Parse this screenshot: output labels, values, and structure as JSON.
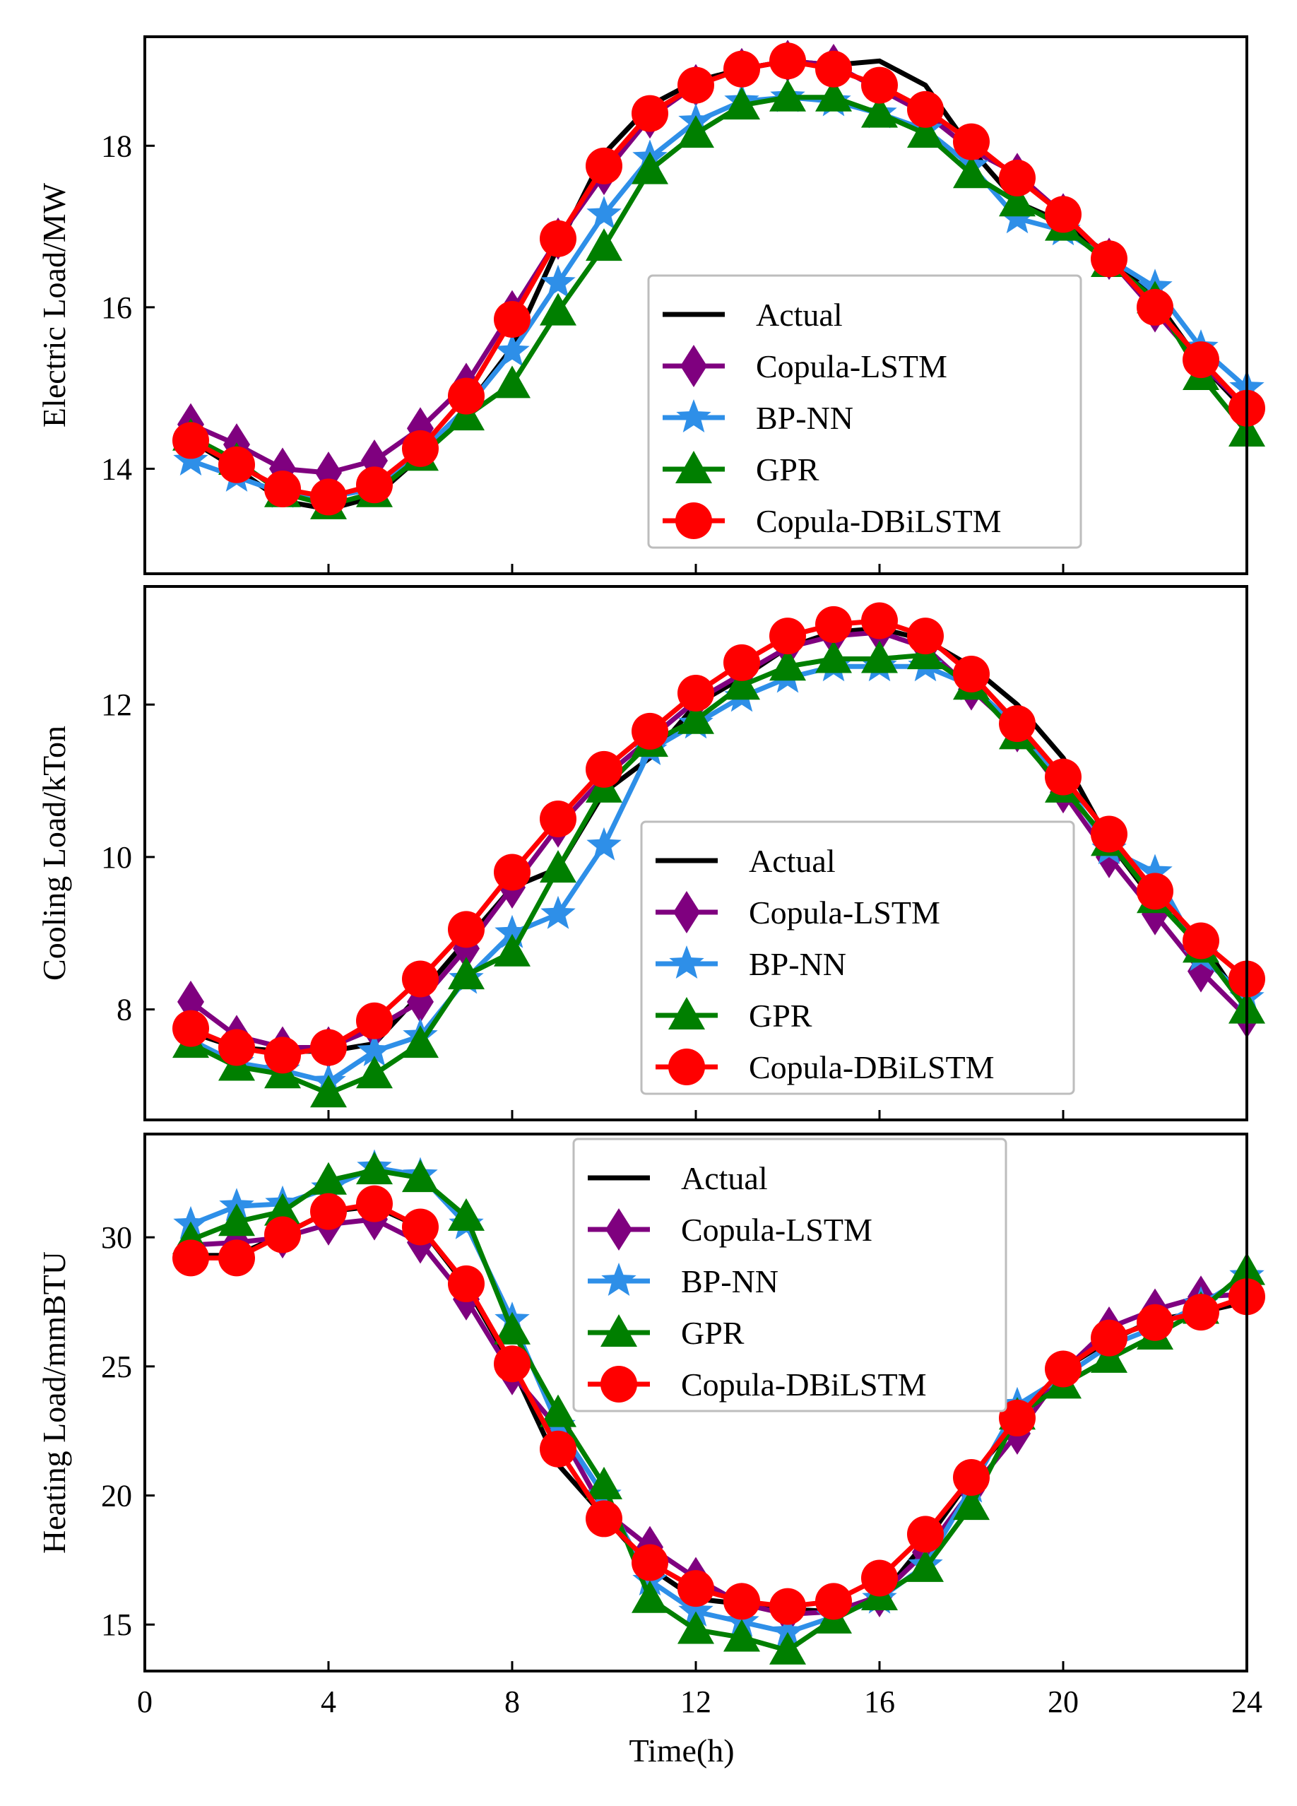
{
  "chart_data": [
    {
      "type": "line",
      "ylabel": "Electric Load/MW",
      "xlabel": "",
      "ylim": [
        12.7,
        19.35
      ],
      "xlim": [
        0,
        24
      ],
      "yticks": [
        14,
        16,
        18
      ],
      "ytick_labels": [
        "14",
        "16",
        "18"
      ],
      "xticks": [
        0,
        4,
        8,
        12,
        16,
        20,
        24
      ],
      "xtick_labels": [],
      "legend": "center-right",
      "x": [
        1,
        2,
        3,
        4,
        5,
        6,
        7,
        8,
        9,
        10,
        11,
        12,
        13,
        14,
        15,
        16,
        17,
        18,
        19,
        20,
        21,
        22,
        23,
        24
      ],
      "series": [
        {
          "name": "Actual",
          "color": "#000000",
          "marker": "none",
          "values": [
            14.35,
            14.0,
            13.6,
            13.5,
            13.65,
            14.15,
            14.75,
            15.5,
            16.75,
            17.9,
            18.5,
            18.8,
            18.95,
            19.05,
            19.0,
            19.05,
            18.75,
            17.95,
            17.3,
            17.05,
            16.65,
            16.1,
            15.3,
            14.7
          ]
        },
        {
          "name": "Copula-LSTM",
          "color": "#7f007f",
          "marker": "diamond",
          "values": [
            14.55,
            14.3,
            14.0,
            13.95,
            14.1,
            14.5,
            15.05,
            15.95,
            16.85,
            17.65,
            18.35,
            18.75,
            18.95,
            19.05,
            19.0,
            18.7,
            18.4,
            17.95,
            17.65,
            17.15,
            16.6,
            15.95,
            15.3,
            14.75
          ]
        },
        {
          "name": "BP-NN",
          "color": "#2e8fe8",
          "marker": "star",
          "values": [
            14.1,
            13.9,
            13.7,
            13.65,
            13.75,
            14.2,
            14.75,
            15.45,
            16.3,
            17.15,
            17.85,
            18.3,
            18.55,
            18.6,
            18.55,
            18.4,
            18.2,
            17.75,
            17.1,
            16.95,
            16.6,
            16.25,
            15.5,
            15.0
          ]
        },
        {
          "name": "GPR",
          "color": "#007f00",
          "marker": "triangle",
          "values": [
            14.4,
            14.1,
            13.7,
            13.55,
            13.7,
            14.15,
            14.65,
            15.05,
            15.95,
            16.75,
            17.7,
            18.15,
            18.5,
            18.6,
            18.6,
            18.4,
            18.15,
            17.65,
            17.3,
            17.0,
            16.55,
            16.1,
            15.15,
            14.45
          ]
        },
        {
          "name": "Copula-DBiLSTM",
          "color": "#ff0000",
          "marker": "circle",
          "values": [
            14.35,
            14.05,
            13.75,
            13.65,
            13.8,
            14.25,
            14.9,
            15.85,
            16.85,
            17.75,
            18.4,
            18.75,
            18.95,
            19.05,
            18.95,
            18.75,
            18.45,
            18.05,
            17.6,
            17.15,
            16.6,
            16.0,
            15.35,
            14.75
          ]
        }
      ]
    },
    {
      "type": "line",
      "ylabel": "Cooling Load/kTon",
      "xlabel": "",
      "ylim": [
        6.55,
        13.55
      ],
      "xlim": [
        0,
        24
      ],
      "yticks": [
        8,
        10,
        12
      ],
      "ytick_labels": [
        "8",
        "10",
        "12"
      ],
      "xticks": [
        0,
        4,
        8,
        12,
        16,
        20,
        24
      ],
      "xtick_labels": [],
      "legend": "center-right",
      "x": [
        1,
        2,
        3,
        4,
        5,
        6,
        7,
        8,
        9,
        10,
        11,
        12,
        13,
        14,
        15,
        16,
        17,
        18,
        19,
        20,
        21,
        22,
        23,
        24
      ],
      "series": [
        {
          "name": "Actual",
          "color": "#000000",
          "marker": "none",
          "values": [
            7.7,
            7.5,
            7.45,
            7.45,
            7.55,
            8.2,
            8.9,
            9.6,
            9.85,
            10.85,
            11.3,
            12.0,
            12.35,
            12.75,
            12.95,
            13.0,
            12.85,
            12.5,
            12.0,
            11.3,
            10.2,
            9.4,
            8.9,
            8.0
          ]
        },
        {
          "name": "Copula-LSTM",
          "color": "#7f007f",
          "marker": "diamond",
          "values": [
            8.1,
            7.65,
            7.5,
            7.5,
            7.75,
            8.1,
            8.8,
            9.6,
            10.4,
            11.05,
            11.55,
            12.05,
            12.4,
            12.75,
            12.9,
            12.95,
            12.75,
            12.2,
            11.65,
            10.85,
            10.0,
            9.25,
            8.5,
            7.9
          ]
        },
        {
          "name": "BP-NN",
          "color": "#2e8fe8",
          "marker": "star",
          "values": [
            7.6,
            7.3,
            7.2,
            7.05,
            7.45,
            7.65,
            8.4,
            9.0,
            9.25,
            10.15,
            11.4,
            11.75,
            12.1,
            12.35,
            12.5,
            12.5,
            12.5,
            12.25,
            11.7,
            11.0,
            10.1,
            9.8,
            8.7,
            8.15
          ]
        },
        {
          "name": "GPR",
          "color": "#007f00",
          "marker": "triangle",
          "values": [
            7.55,
            7.25,
            7.15,
            6.9,
            7.15,
            7.55,
            8.45,
            8.75,
            9.85,
            10.9,
            11.5,
            11.8,
            12.25,
            12.5,
            12.6,
            12.6,
            12.65,
            12.25,
            11.6,
            10.9,
            10.2,
            9.45,
            8.8,
            8.0
          ]
        },
        {
          "name": "Copula-DBiLSTM",
          "color": "#ff0000",
          "marker": "circle",
          "values": [
            7.75,
            7.5,
            7.4,
            7.5,
            7.85,
            8.4,
            9.05,
            9.8,
            10.5,
            11.15,
            11.65,
            12.15,
            12.55,
            12.9,
            13.05,
            13.1,
            12.9,
            12.4,
            11.75,
            11.05,
            10.3,
            9.55,
            8.9,
            8.4
          ]
        }
      ]
    },
    {
      "type": "line",
      "ylabel": "Heating Load/mmBTU",
      "xlabel": "Time(h)",
      "ylim": [
        13.2,
        34.0
      ],
      "xlim": [
        0,
        24
      ],
      "yticks": [
        15,
        20,
        25,
        30
      ],
      "ytick_labels": [
        "15",
        "20",
        "25",
        "30"
      ],
      "xticks": [
        0,
        4,
        8,
        12,
        16,
        20,
        24
      ],
      "xtick_labels": [
        "0",
        "4",
        "8",
        "12",
        "16",
        "20",
        "24"
      ],
      "legend": "top-center",
      "x": [
        1,
        2,
        3,
        4,
        5,
        6,
        7,
        8,
        9,
        10,
        11,
        12,
        13,
        14,
        15,
        16,
        17,
        18,
        19,
        20,
        21,
        22,
        23,
        24
      ],
      "series": [
        {
          "name": "Actual",
          "color": "#000000",
          "marker": "none",
          "values": [
            29.3,
            29.3,
            30.1,
            31.0,
            31.2,
            30.4,
            28.1,
            25.0,
            21.2,
            19.2,
            17.2,
            16.0,
            15.8,
            15.6,
            15.5,
            16.0,
            18.2,
            20.7,
            22.9,
            24.9,
            26.0,
            26.8,
            27.1,
            27.5
          ]
        },
        {
          "name": "Copula-LSTM",
          "color": "#7f007f",
          "marker": "diamond",
          "values": [
            29.7,
            29.8,
            30.0,
            30.5,
            30.7,
            29.8,
            27.6,
            24.7,
            22.6,
            19.4,
            18.0,
            16.8,
            15.8,
            15.4,
            15.5,
            16.1,
            17.8,
            20.2,
            22.4,
            24.8,
            26.5,
            27.2,
            27.7,
            27.8
          ]
        },
        {
          "name": "BP-NN",
          "color": "#2e8fe8",
          "marker": "star",
          "values": [
            30.5,
            31.2,
            31.3,
            31.9,
            32.7,
            32.4,
            30.5,
            26.8,
            22.7,
            20.0,
            16.7,
            15.5,
            15.1,
            14.7,
            15.3,
            16.0,
            17.3,
            20.3,
            23.5,
            24.6,
            25.8,
            26.5,
            27.4,
            28.5
          ]
        },
        {
          "name": "GPR",
          "color": "#007f00",
          "marker": "triangle",
          "values": [
            29.9,
            30.6,
            31.0,
            32.2,
            32.6,
            32.3,
            30.8,
            26.4,
            23.2,
            20.4,
            16.0,
            14.8,
            14.5,
            14.0,
            15.2,
            16.1,
            17.2,
            19.6,
            23.1,
            24.3,
            25.3,
            26.2,
            27.2,
            28.7
          ]
        },
        {
          "name": "Copula-DBiLSTM",
          "color": "#ff0000",
          "marker": "circle",
          "values": [
            29.2,
            29.2,
            30.1,
            31.0,
            31.3,
            30.4,
            28.2,
            25.1,
            21.8,
            19.1,
            17.4,
            16.4,
            15.9,
            15.7,
            15.9,
            16.8,
            18.5,
            20.7,
            23.0,
            24.9,
            26.1,
            26.7,
            27.1,
            27.7
          ]
        }
      ]
    }
  ]
}
